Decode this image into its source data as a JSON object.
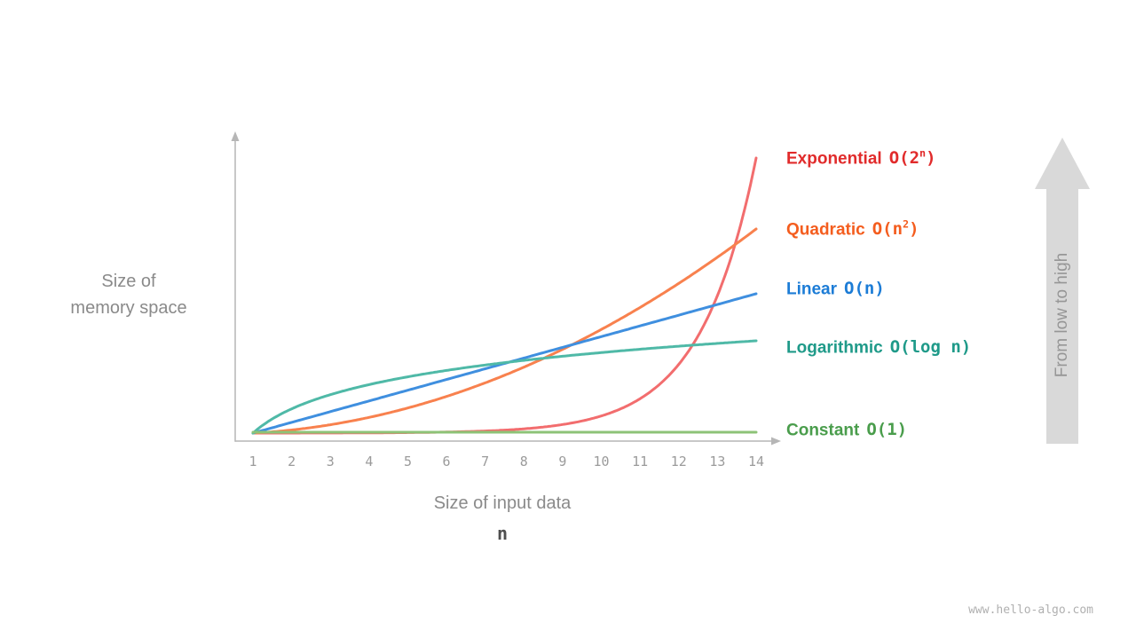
{
  "axes": {
    "y_label_line1": "Size of",
    "y_label_line2": "memory space",
    "x_label": "Size of input data",
    "x_symbol": "n"
  },
  "annotation_arrow": {
    "label": "From low to high",
    "color": "#d9d9d9"
  },
  "watermark": "www.hello-algo.com",
  "legend": [
    {
      "label": "Exponential",
      "o_pre": "O(2",
      "o_sup": "n",
      "o_post": ")",
      "color": "#e12b2b"
    },
    {
      "label": "Quadratic",
      "o_pre": "O(n",
      "o_sup": "2",
      "o_post": ")",
      "color": "#f45d1e"
    },
    {
      "label": "Linear",
      "o_pre": "O(n)",
      "o_sup": "",
      "o_post": "",
      "color": "#1c7cd6"
    },
    {
      "label": "Logarithmic",
      "o_pre": "O(log n)",
      "o_sup": "",
      "o_post": "",
      "color": "#1f9a89"
    },
    {
      "label": "Constant",
      "o_pre": "O(1)",
      "o_sup": "",
      "o_post": "",
      "color": "#4a9d4c"
    }
  ],
  "chart_data": {
    "type": "line",
    "title": "",
    "xlabel": "Size of input data (n)",
    "ylabel": "Size of memory space",
    "x_range": [
      1,
      14
    ],
    "x": [
      1,
      2,
      3,
      4,
      5,
      6,
      7,
      8,
      9,
      10,
      11,
      12,
      13,
      14
    ],
    "x_ticks": [
      "1",
      "2",
      "3",
      "4",
      "5",
      "6",
      "7",
      "8",
      "9",
      "10",
      "11",
      "12",
      "13",
      "14"
    ],
    "grid": false,
    "legend_position": "right",
    "series": [
      {
        "name": "Exponential",
        "formula": "2^n",
        "color": "#f26d6e",
        "values": [
          2,
          4,
          8,
          16,
          32,
          64,
          128,
          256,
          512,
          1024,
          2048,
          4096,
          8192,
          16384
        ]
      },
      {
        "name": "Quadratic",
        "formula": "n^2",
        "color": "#f8814e",
        "values": [
          1,
          4,
          9,
          16,
          25,
          36,
          49,
          64,
          81,
          100,
          121,
          144,
          169,
          196
        ]
      },
      {
        "name": "Linear",
        "formula": "n",
        "color": "#3f8fdf",
        "values": [
          1,
          2,
          3,
          4,
          5,
          6,
          7,
          8,
          9,
          10,
          11,
          12,
          13,
          14
        ]
      },
      {
        "name": "Logarithmic",
        "formula": "log2(n)",
        "color": "#4fb9a7",
        "values": [
          0,
          1,
          1.585,
          2,
          2.322,
          2.585,
          2.807,
          3,
          3.17,
          3.322,
          3.459,
          3.585,
          3.7,
          3.807
        ]
      },
      {
        "name": "Constant",
        "formula": "1",
        "color": "#8dc377",
        "values": [
          1,
          1,
          1,
          1,
          1,
          1,
          1,
          1,
          1,
          1,
          1,
          1,
          1,
          1
        ]
      }
    ]
  }
}
